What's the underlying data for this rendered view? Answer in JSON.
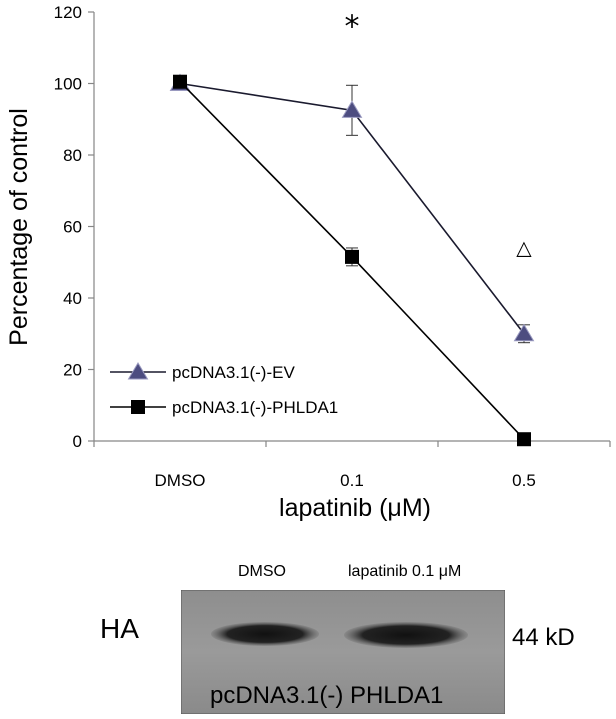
{
  "chart_data": {
    "type": "line",
    "categories": [
      "DMSO",
      "0.1",
      "0.5"
    ],
    "xlabel": "lapatinib (μM)",
    "ylabel": "Percentage of control",
    "ylim": [
      0,
      120
    ],
    "yticks": [
      0,
      20,
      40,
      60,
      80,
      100,
      120
    ],
    "grid": false,
    "legend_position": "bottom-left",
    "series": [
      {
        "name": "pcDNA3.1(-)-EV",
        "marker": "triangle",
        "color": "#1a1a2e",
        "fill": "#4d4d80",
        "values": [
          100,
          92.5,
          30
        ],
        "errors": [
          1.5,
          7,
          2.5
        ]
      },
      {
        "name": "pcDNA3.1(-)-PHLDA1",
        "marker": "square",
        "color": "#000000",
        "fill": "#000000",
        "values": [
          100.5,
          51.5,
          0.5
        ],
        "errors": [
          1.5,
          2.5,
          0.5
        ]
      }
    ],
    "annotations": [
      {
        "text": "*",
        "x": "0.1",
        "y": 116
      },
      {
        "text": "△",
        "x": "0.5",
        "y": 55
      }
    ]
  },
  "blot": {
    "lanes": [
      "DMSO",
      "lapatinib 0.1 μM"
    ],
    "antibody": "HA",
    "size": "44 kD",
    "construct": "pcDNA3.1(-) PHLDA1"
  }
}
